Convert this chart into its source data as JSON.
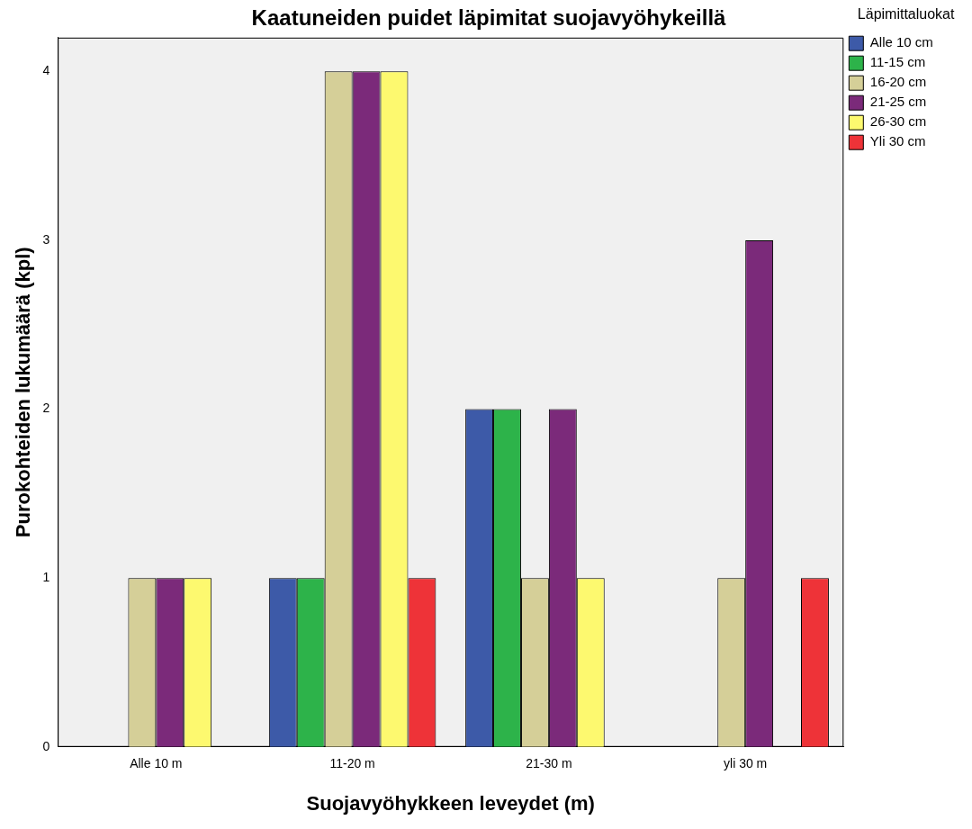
{
  "chart_data": {
    "type": "bar",
    "title": "Kaatuneiden puidet läpimitat suojavyöhykeillä",
    "xlabel": "Suojavyöhykkeen leveydet (m)",
    "ylabel": "Purokohteiden lukumäärä (kpl)",
    "legend_title": "Läpimittaluokat",
    "categories": [
      "Alle 10 m",
      "11-20 m",
      "21-30 m",
      "yli 30 m"
    ],
    "series": [
      {
        "name": "Alle 10 cm",
        "color": "#3d5aa8",
        "values": [
          null,
          1,
          2,
          null
        ]
      },
      {
        "name": "11-15 cm",
        "color": "#2db34a",
        "values": [
          null,
          1,
          2,
          null
        ]
      },
      {
        "name": "16-20 cm",
        "color": "#d5cf98",
        "values": [
          1,
          4,
          1,
          1
        ]
      },
      {
        "name": "21-25 cm",
        "color": "#7b2a7a",
        "values": [
          1,
          4,
          2,
          3
        ]
      },
      {
        "name": "26-30 cm",
        "color": "#fdf96f",
        "values": [
          1,
          4,
          1,
          null
        ]
      },
      {
        "name": "Yli 30 cm",
        "color": "#ee3338",
        "values": [
          null,
          1,
          null,
          1
        ]
      }
    ],
    "ylim": [
      0,
      4.2
    ],
    "yticks": [
      0,
      1,
      2,
      3,
      4
    ],
    "grid": false,
    "legend": "top right"
  }
}
